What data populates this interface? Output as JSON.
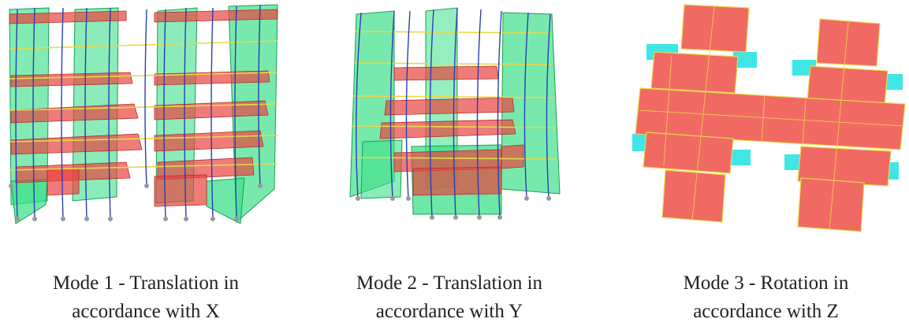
{
  "modes": [
    {
      "line1": "Mode 1 - Translation in",
      "line2": "accordance with X"
    },
    {
      "line1": "Mode 2 - Translation in",
      "line2": "accordance with Y"
    },
    {
      "line1": "Mode 3 - Rotation in",
      "line2": "accordance with Z"
    }
  ],
  "colors": {
    "wall": "#3ee08a",
    "slab": "#e8443f",
    "column": "#2a3fb0",
    "beam": "#e8d84a",
    "overhang": "#40e6e6"
  }
}
